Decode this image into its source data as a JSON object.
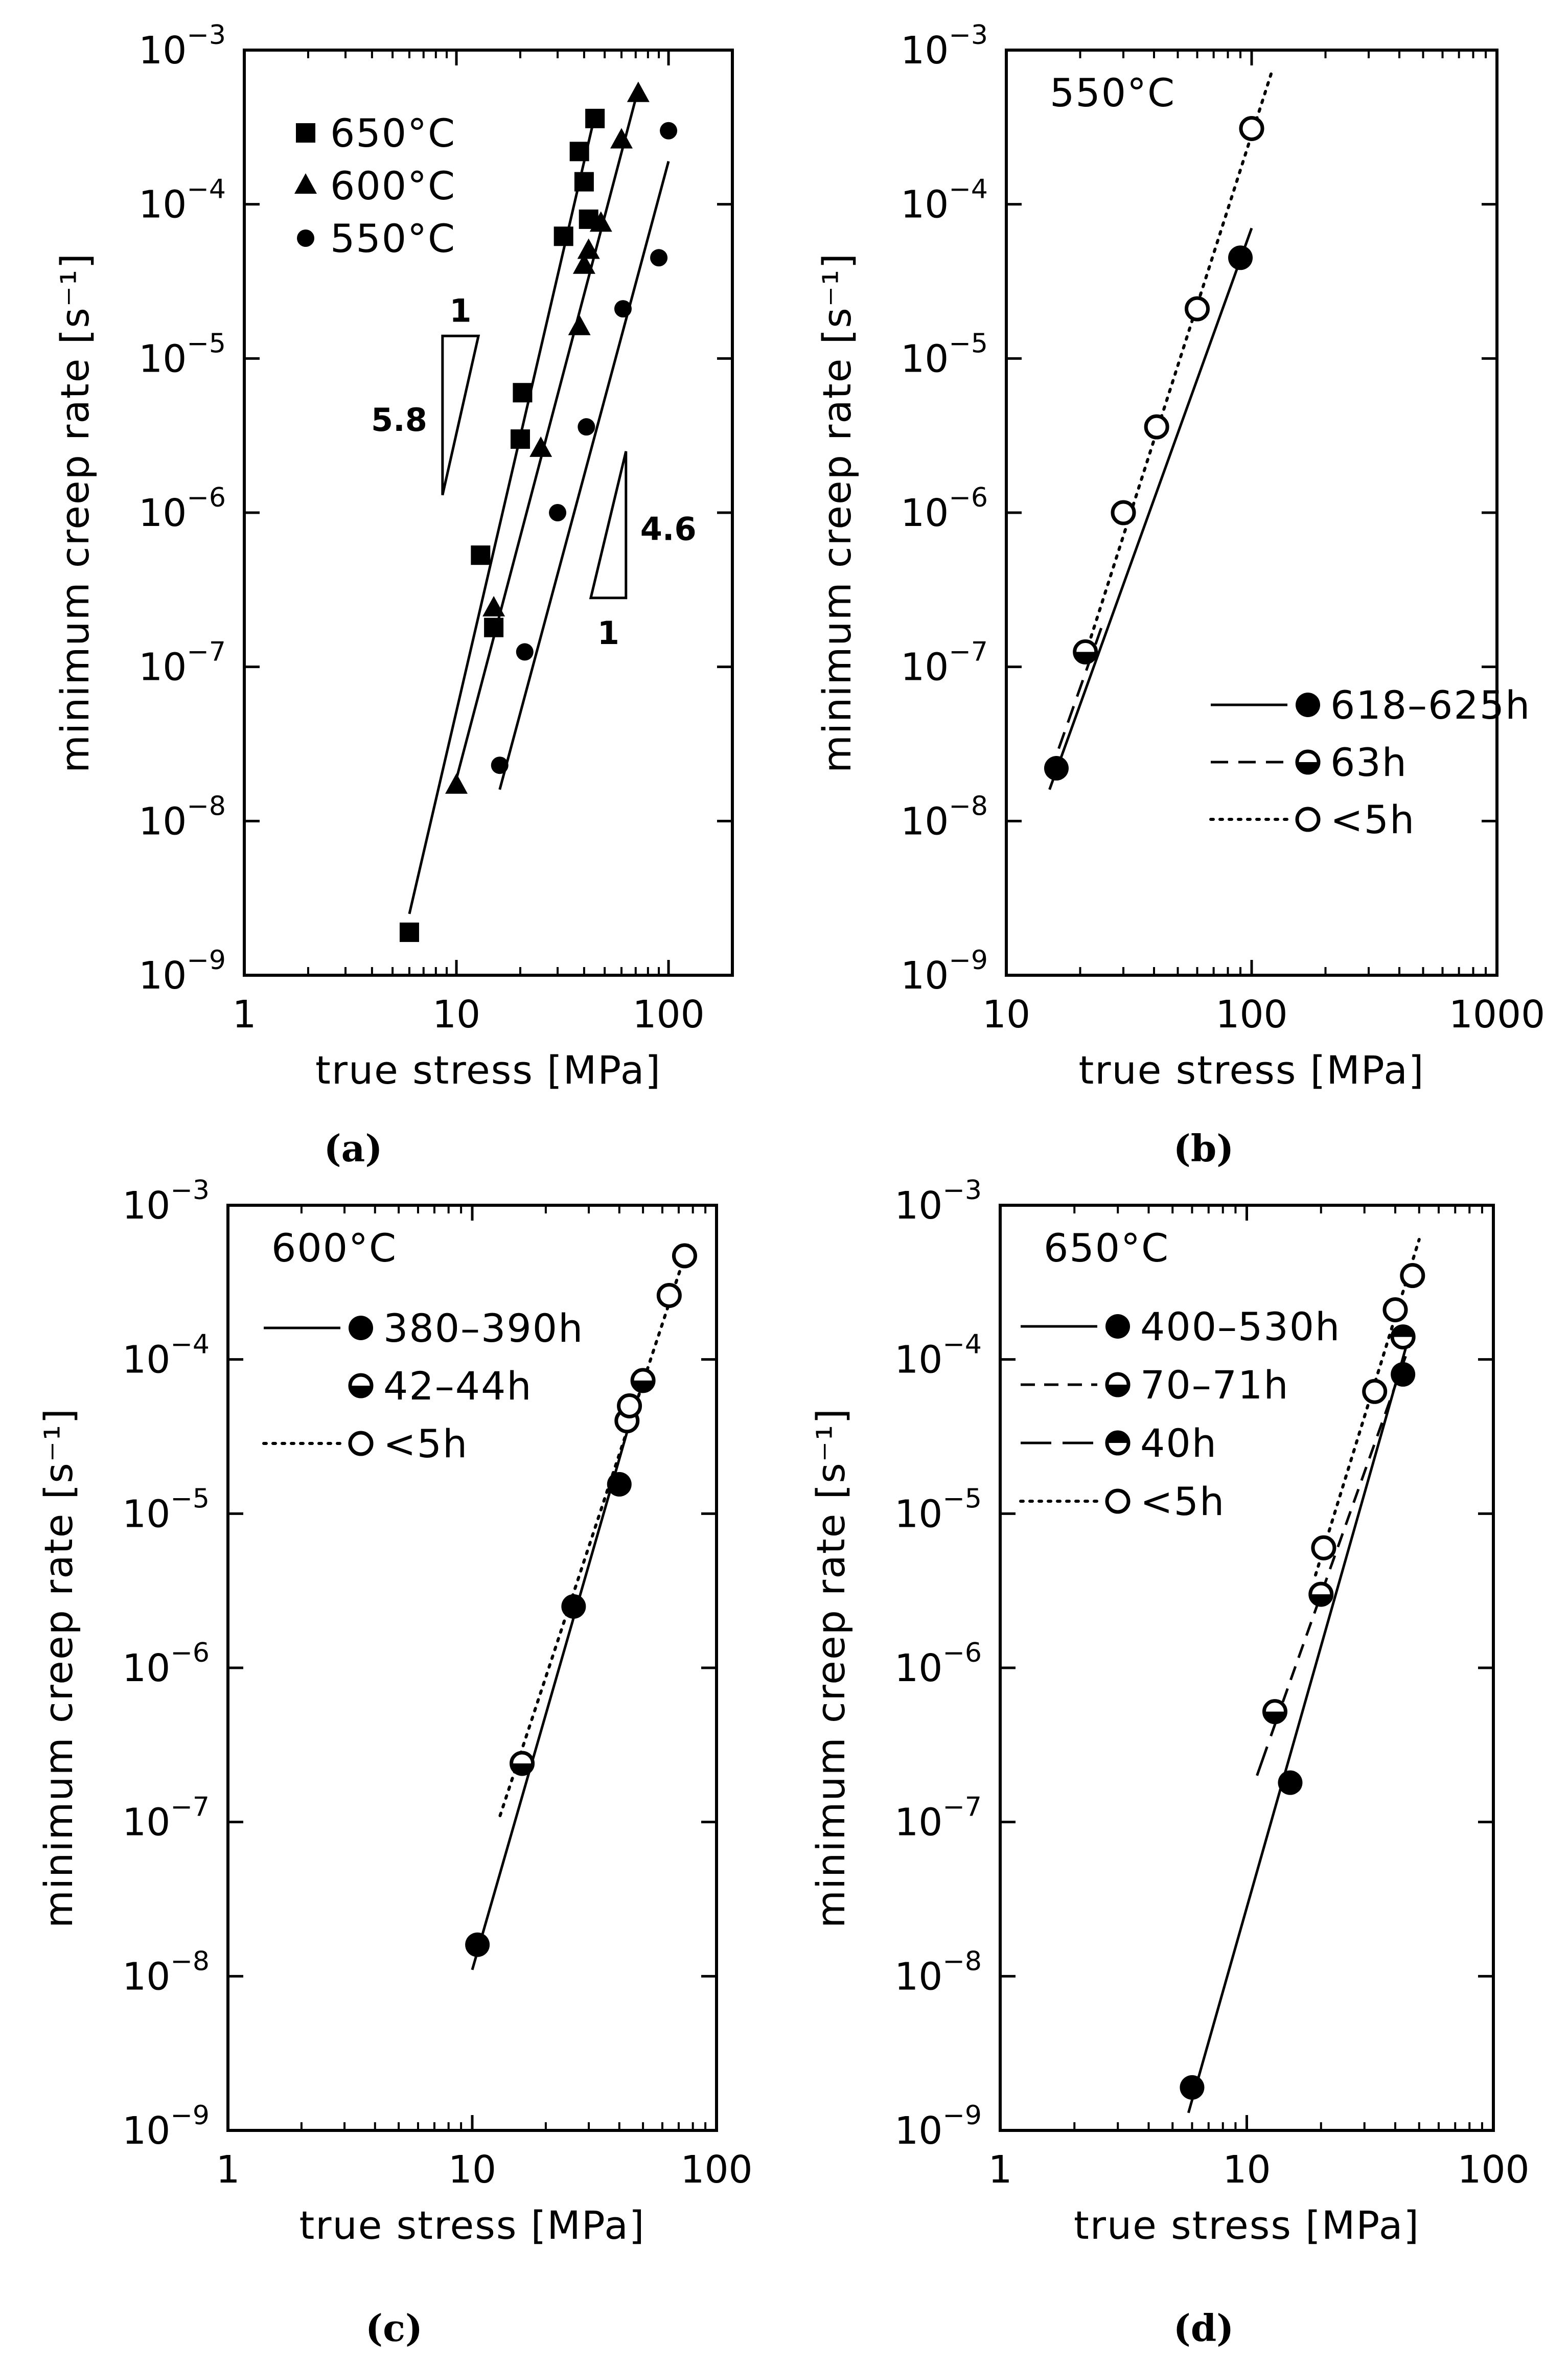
{
  "figure": {
    "background": "#ffffff",
    "ink": "#000000"
  },
  "chart_data": [
    {
      "id": "a",
      "panel_label": "(a)",
      "type": "scatter",
      "xscale": "log",
      "yscale": "log",
      "xlim": [
        1,
        200
      ],
      "ylim": [
        1e-09,
        0.001
      ],
      "xlabel": "true stress [MPa]",
      "ylabel": "minimum creep rate [s⁻¹]",
      "xticks": [
        {
          "v": 1,
          "label": "1"
        },
        {
          "v": 10,
          "label": "10"
        },
        {
          "v": 100,
          "label": "100"
        }
      ],
      "yticks": [
        {
          "v": 1e-09,
          "base": "10",
          "exp": "−9"
        },
        {
          "v": 1e-08,
          "base": "10",
          "exp": "−8"
        },
        {
          "v": 1e-07,
          "base": "10",
          "exp": "−7"
        },
        {
          "v": 1e-06,
          "base": "10",
          "exp": "−6"
        },
        {
          "v": 1e-05,
          "base": "10",
          "exp": "−5"
        },
        {
          "v": 0.0001,
          "base": "10",
          "exp": "−4"
        },
        {
          "v": 0.001,
          "base": "10",
          "exp": "−3"
        }
      ],
      "legend": {
        "position": "top-left",
        "entries": [
          {
            "label": "650°C",
            "marker": "square"
          },
          {
            "label": "600°C",
            "marker": "triangle"
          },
          {
            "label": "550°C",
            "marker": "circle"
          }
        ]
      },
      "series": [
        {
          "name": "650°C",
          "marker": "square",
          "points": [
            [
              6,
              1.9e-09
            ],
            [
              13,
              5.3e-07
            ],
            [
              15,
              1.8e-07
            ],
            [
              20,
              3e-06
            ],
            [
              20.5,
              6e-06
            ],
            [
              32,
              6.2e-05
            ],
            [
              38,
              0.00022
            ],
            [
              40,
              0.00014
            ],
            [
              42,
              8e-05
            ],
            [
              45,
              0.00036
            ]
          ],
          "fit": [
            [
              6,
              2.5e-09
            ],
            [
              45,
              0.00038
            ]
          ],
          "fit_style": "solid"
        },
        {
          "name": "600°C",
          "marker": "triangle",
          "points": [
            [
              10,
              1.7e-08
            ],
            [
              15,
              2.4e-07
            ],
            [
              25,
              2.6e-06
            ],
            [
              38,
              1.6e-05
            ],
            [
              40,
              4e-05
            ],
            [
              42,
              5e-05
            ],
            [
              48,
              7.5e-05
            ],
            [
              60,
              0.00026
            ],
            [
              72,
              0.00052
            ]
          ],
          "fit": [
            [
              9.7,
              1.6e-08
            ],
            [
              72,
              0.00056
            ]
          ],
          "fit_style": "solid"
        },
        {
          "name": "550°C",
          "marker": "circle",
          "points": [
            [
              16,
              2.3e-08
            ],
            [
              21,
              1.25e-07
            ],
            [
              30,
              1e-06
            ],
            [
              41,
              3.6e-06
            ],
            [
              61,
              2.1e-05
            ],
            [
              90,
              4.5e-05
            ],
            [
              100,
              0.0003
            ]
          ],
          "fit": [
            [
              16,
              1.6e-08
            ],
            [
              100,
              0.00019
            ]
          ],
          "fit_style": "solid"
        }
      ],
      "annotations": [
        {
          "kind": "slope-triangle",
          "orientation": "upper",
          "x1": 8.6,
          "x2": 12.7,
          "y_top": 1.4e-05,
          "y_bottom": 1.3e-06,
          "run_label": "1",
          "rise_label": "5.8"
        },
        {
          "kind": "slope-triangle",
          "orientation": "lower",
          "x1": 43,
          "x2": 63,
          "y_top": 2.5e-06,
          "y_bottom": 2.8e-07,
          "run_label": "1",
          "rise_label": "4.6"
        }
      ]
    },
    {
      "id": "b",
      "panel_label": "(b)",
      "type": "scatter",
      "xscale": "log",
      "yscale": "log",
      "xlim": [
        10,
        1000
      ],
      "ylim": [
        1e-09,
        0.001
      ],
      "xlabel": "true stress [MPa]",
      "ylabel": "minimum creep rate [s⁻¹]",
      "title_in_plot": "550°C",
      "xticks": [
        {
          "v": 10,
          "label": "10"
        },
        {
          "v": 100,
          "label": "100"
        },
        {
          "v": 1000,
          "label": "1000"
        }
      ],
      "yticks": [
        {
          "v": 1e-09,
          "base": "10",
          "exp": "−9"
        },
        {
          "v": 1e-08,
          "base": "10",
          "exp": "−8"
        },
        {
          "v": 1e-07,
          "base": "10",
          "exp": "−7"
        },
        {
          "v": 1e-06,
          "base": "10",
          "exp": "−6"
        },
        {
          "v": 1e-05,
          "base": "10",
          "exp": "−5"
        },
        {
          "v": 0.0001,
          "base": "10",
          "exp": "−4"
        },
        {
          "v": 0.001,
          "base": "10",
          "exp": "−3"
        }
      ],
      "legend": {
        "position": "bottom-right",
        "entries": [
          {
            "label": "618–625h",
            "marker": "circle-filled",
            "line": "solid"
          },
          {
            "label": "63h",
            "marker": "circle-half-bottom",
            "line": "dashed"
          },
          {
            "label": "<5h",
            "marker": "circle-open",
            "line": "dotted"
          }
        ]
      },
      "series": [
        {
          "name": "618–625h",
          "marker": "circle-filled",
          "points": [
            [
              16,
              2.2e-08
            ],
            [
              90,
              4.5e-05
            ]
          ],
          "fit": [
            [
              15,
              1.6e-08
            ],
            [
              100,
              7e-05
            ]
          ],
          "fit_style": "solid"
        },
        {
          "name": "63h",
          "marker": "circle-half-bottom",
          "points": [
            [
              21,
              1.25e-07
            ]
          ],
          "fit": [
            [
              15,
              2e-08
            ],
            [
              25,
              2e-07
            ]
          ],
          "fit_style": "dashed"
        },
        {
          "name": "<5h",
          "marker": "circle-open",
          "points": [
            [
              30,
              1e-06
            ],
            [
              41,
              3.6e-06
            ],
            [
              60,
              2.1e-05
            ],
            [
              100,
              0.00031
            ]
          ],
          "fit": [
            [
              21,
              1.2e-07
            ],
            [
              120,
              0.0007
            ]
          ],
          "fit_style": "dotted"
        }
      ]
    },
    {
      "id": "c",
      "panel_label": "(c)",
      "type": "scatter",
      "xscale": "log",
      "yscale": "log",
      "xlim": [
        1,
        100
      ],
      "ylim": [
        1e-09,
        0.001
      ],
      "xlabel": "true stress [MPa]",
      "ylabel": "minimum creep rate [s⁻¹]",
      "title_in_plot": "600°C",
      "xticks": [
        {
          "v": 1,
          "label": "1"
        },
        {
          "v": 10,
          "label": "10"
        },
        {
          "v": 100,
          "label": "100"
        }
      ],
      "yticks": [
        {
          "v": 1e-09,
          "base": "10",
          "exp": "−9"
        },
        {
          "v": 1e-08,
          "base": "10",
          "exp": "−8"
        },
        {
          "v": 1e-07,
          "base": "10",
          "exp": "−7"
        },
        {
          "v": 1e-06,
          "base": "10",
          "exp": "−6"
        },
        {
          "v": 1e-05,
          "base": "10",
          "exp": "−5"
        },
        {
          "v": 0.0001,
          "base": "10",
          "exp": "−4"
        },
        {
          "v": 0.001,
          "base": "10",
          "exp": "−3"
        }
      ],
      "legend": {
        "position": "top-left",
        "entries": [
          {
            "label": "380–390h",
            "marker": "circle-filled",
            "line": "solid"
          },
          {
            "label": "42–44h",
            "marker": "circle-half-bottom",
            "line": "none"
          },
          {
            "label": "<5h",
            "marker": "circle-open",
            "line": "dotted"
          }
        ]
      },
      "series": [
        {
          "name": "380–390h",
          "marker": "circle-filled",
          "points": [
            [
              10.5,
              1.6e-08
            ],
            [
              26,
              2.5e-06
            ],
            [
              40,
              1.55e-05
            ]
          ],
          "fit": [
            [
              10,
              1.1e-08
            ],
            [
              47,
              5.5e-05
            ]
          ],
          "fit_style": "solid"
        },
        {
          "name": "42–44h",
          "marker": "circle-half-bottom",
          "points": [
            [
              16,
              2.4e-07
            ],
            [
              50,
              7.3e-05
            ]
          ],
          "fit": null,
          "fit_style": "none"
        },
        {
          "name": "<5h",
          "marker": "circle-open",
          "points": [
            [
              43,
              4e-05
            ],
            [
              44,
              5e-05
            ],
            [
              64,
              0.00026
            ],
            [
              74,
              0.00047
            ]
          ],
          "fit": [
            [
              13,
              1.1e-07
            ],
            [
              78,
              0.0006
            ]
          ],
          "fit_style": "dotted"
        }
      ]
    },
    {
      "id": "d",
      "panel_label": "(d)",
      "type": "scatter",
      "xscale": "log",
      "yscale": "log",
      "xlim": [
        1,
        100
      ],
      "ylim": [
        1e-09,
        0.001
      ],
      "xlabel": "true stress [MPa]",
      "ylabel": "minimum creep rate [s⁻¹]",
      "title_in_plot": "650°C",
      "xticks": [
        {
          "v": 1,
          "label": "1"
        },
        {
          "v": 10,
          "label": "10"
        },
        {
          "v": 100,
          "label": "100"
        }
      ],
      "yticks": [
        {
          "v": 1e-09,
          "base": "10",
          "exp": "−9"
        },
        {
          "v": 1e-08,
          "base": "10",
          "exp": "−8"
        },
        {
          "v": 1e-07,
          "base": "10",
          "exp": "−7"
        },
        {
          "v": 1e-06,
          "base": "10",
          "exp": "−6"
        },
        {
          "v": 1e-05,
          "base": "10",
          "exp": "−5"
        },
        {
          "v": 0.0001,
          "base": "10",
          "exp": "−4"
        },
        {
          "v": 0.001,
          "base": "10",
          "exp": "−3"
        }
      ],
      "legend": {
        "position": "top-left",
        "entries": [
          {
            "label": "400–530h",
            "marker": "circle-filled",
            "line": "solid"
          },
          {
            "label": "70–71h",
            "marker": "circle-half-bottom",
            "line": "dashed-short"
          },
          {
            "label": "40h",
            "marker": "circle-half-top",
            "line": "dashed-long"
          },
          {
            "label": "<5h",
            "marker": "circle-open",
            "line": "dotted"
          }
        ]
      },
      "series": [
        {
          "name": "400–530h",
          "marker": "circle-filled",
          "points": [
            [
              6,
              1.9e-09
            ],
            [
              15,
              1.8e-07
            ],
            [
              43,
              8e-05
            ]
          ],
          "fit": [
            [
              5.8,
              1.3e-09
            ],
            [
              46,
              0.00015
            ]
          ],
          "fit_style": "solid"
        },
        {
          "name": "70–71h",
          "marker": "circle-half-bottom",
          "points": [
            [
              13,
              5.2e-07
            ],
            [
              20,
              3e-06
            ]
          ],
          "fit": [
            [
              14,
              6e-07
            ],
            [
              47,
              0.00014
            ]
          ],
          "fit_style": "dashed-short"
        },
        {
          "name": "40h",
          "marker": "circle-half-top",
          "points": [
            [
              43,
              0.00014
            ]
          ],
          "fit": [
            [
              11,
              2e-07
            ],
            [
              14,
              6e-07
            ]
          ],
          "fit_style": "dashed-long"
        },
        {
          "name": "<5h",
          "marker": "circle-open",
          "points": [
            [
              20.5,
              6e-06
            ],
            [
              33,
              6.2e-05
            ],
            [
              40,
              0.00021
            ],
            [
              47,
              0.00035
            ]
          ],
          "fit": [
            [
              19,
              4e-06
            ],
            [
              50,
              0.0006
            ]
          ],
          "fit_style": "dotted"
        }
      ]
    }
  ]
}
